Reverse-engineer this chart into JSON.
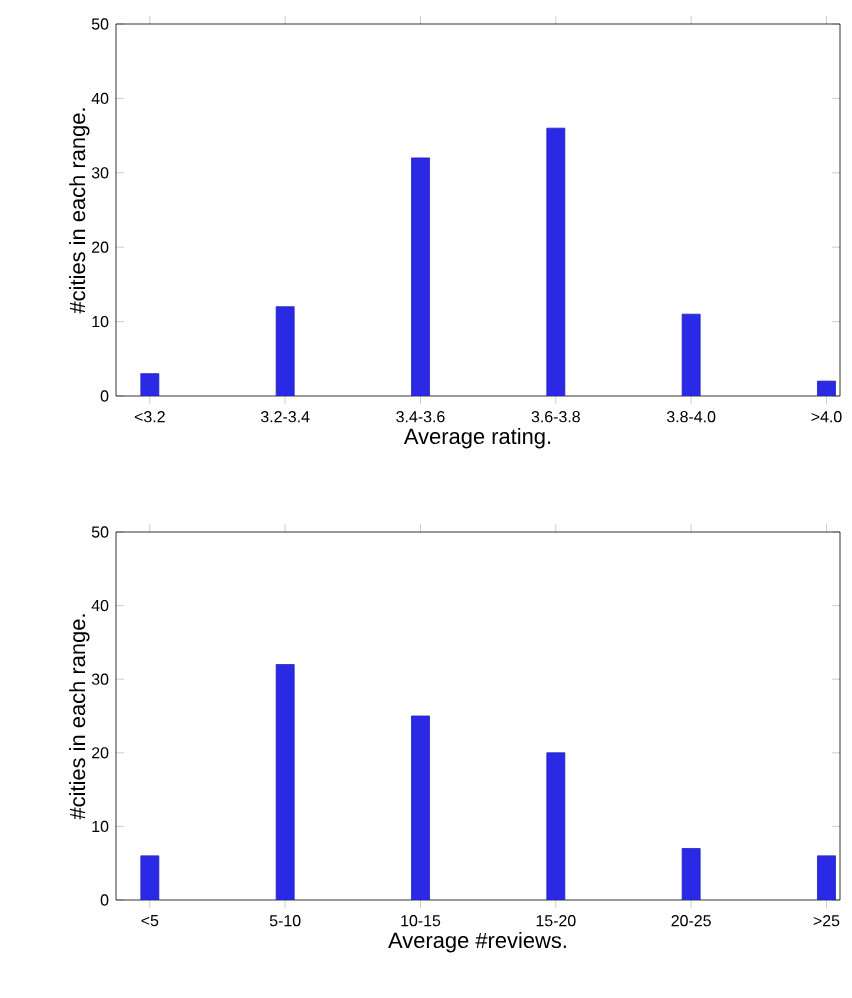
{
  "chart_data": [
    {
      "type": "bar",
      "xlabel": "Average rating.",
      "ylabel": "#cities in each range.",
      "categories": [
        "<3.2",
        "3.2-3.4",
        "3.4-3.6",
        "3.6-3.8",
        "3.8-4.0",
        ">4.0"
      ],
      "values": [
        3,
        12,
        32,
        36,
        11,
        2
      ],
      "color": "#2a2ae6",
      "ylim": [
        0,
        50
      ],
      "yticks": [
        0,
        10,
        20,
        30,
        40,
        50
      ]
    },
    {
      "type": "bar",
      "xlabel": "Average #reviews.",
      "ylabel": "#cities in each range.",
      "categories": [
        "<5",
        "5-10",
        "10-15",
        "15-20",
        "20-25",
        ">25"
      ],
      "values": [
        6,
        32,
        25,
        20,
        7,
        6
      ],
      "color": "#2a2ae6",
      "ylim": [
        0,
        50
      ],
      "yticks": [
        0,
        10,
        20,
        30,
        40,
        50
      ]
    }
  ]
}
